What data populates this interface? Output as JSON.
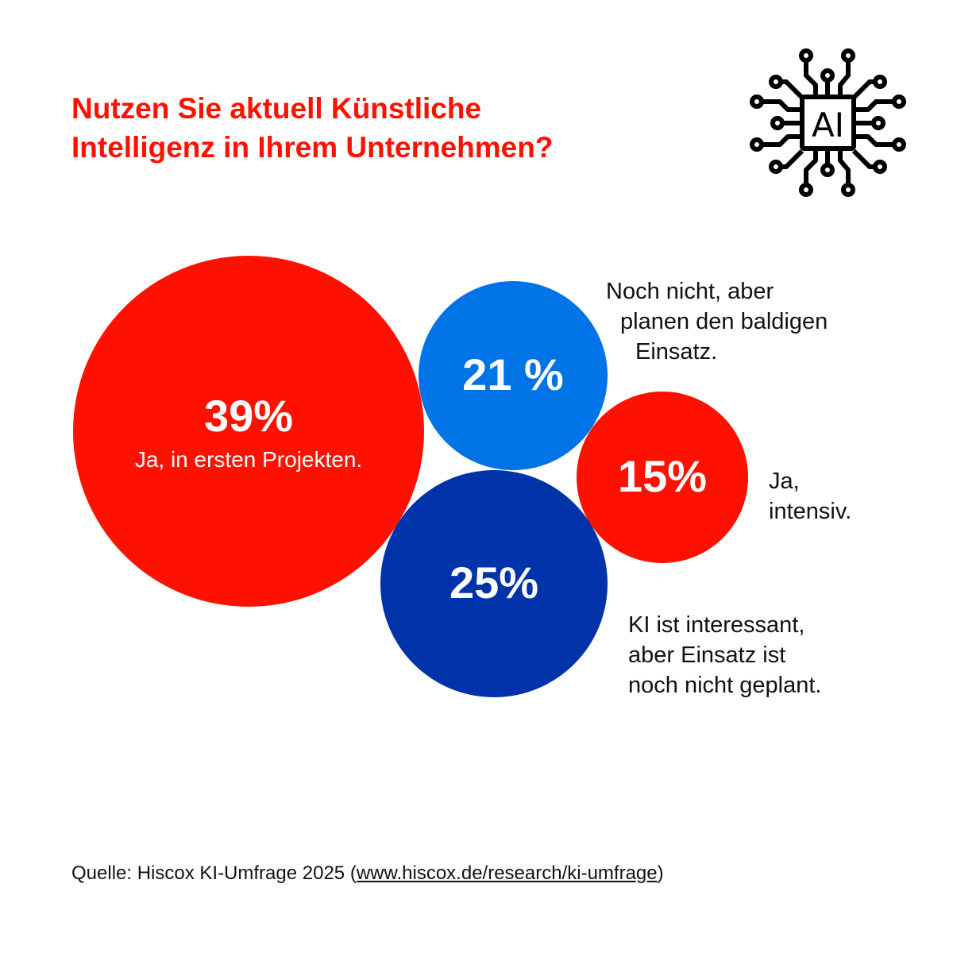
{
  "title_lines": [
    "Nutzen Sie aktuell Künstliche",
    "Intelligenz in Ihrem Unternehmen?"
  ],
  "icon": {
    "name": "ai-chip-icon",
    "text": "AI"
  },
  "chart_data": {
    "type": "bubble",
    "title": "Nutzen Sie aktuell Künstliche Intelligenz in Ihrem Unternehmen?",
    "series": [
      {
        "label": "39%",
        "value": 39,
        "category": "Ja, in ersten Projekten.",
        "color": "#ff1100"
      },
      {
        "label": "21 %",
        "value": 21,
        "category": "Noch nicht, aber planen den baldigen Einsatz.",
        "color": "#0073e6"
      },
      {
        "label": "15%",
        "value": 15,
        "category": "Ja, intensiv.",
        "color": "#ff1100"
      },
      {
        "label": "25%",
        "value": 25,
        "category": "KI ist interessant, aber Einsatz ist noch nicht geplant.",
        "color": "#0033aa"
      }
    ]
  },
  "labels": {
    "planen": [
      "Noch nicht, aber",
      "planen den baldigen",
      "Einsatz."
    ],
    "intensiv": [
      "Ja,",
      "intensiv."
    ],
    "interessant": [
      "KI ist interessant,",
      "aber Einsatz ist",
      "noch nicht geplant."
    ]
  },
  "source": {
    "prefix": "Quelle: Hiscox KI-Umfrage 2025 (",
    "link": "www.hiscox.de/research/ki-umfrage",
    "suffix": ")"
  }
}
